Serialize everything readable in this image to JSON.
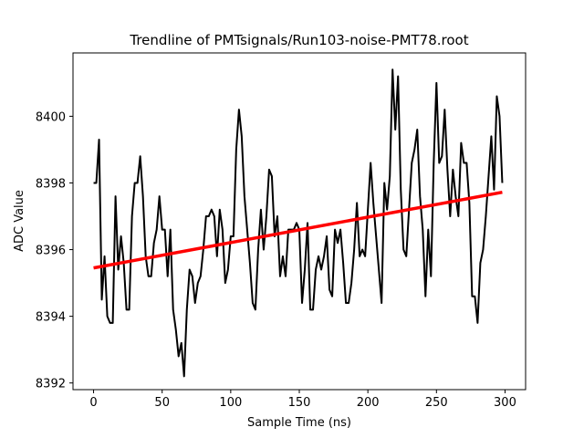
{
  "chart_data": {
    "type": "line",
    "title": "Trendline of PMTsignals/Run103-noise-PMT78.root",
    "xlabel": "Sample Time (ns)",
    "ylabel": "ADC Value",
    "xlim": [
      -15,
      315
    ],
    "ylim": [
      8391.8,
      8401.9
    ],
    "xticks": [
      0,
      50,
      100,
      150,
      200,
      250,
      300
    ],
    "yticks": [
      8392,
      8394,
      8396,
      8398,
      8400
    ],
    "grid": false,
    "series": [
      {
        "color": "#000000",
        "x": [
          0,
          2,
          4,
          6,
          8,
          10,
          12,
          14,
          16,
          18,
          20,
          22,
          24,
          26,
          28,
          30,
          32,
          34,
          36,
          38,
          40,
          42,
          44,
          46,
          48,
          50,
          52,
          54,
          56,
          58,
          60,
          62,
          64,
          66,
          68,
          70,
          72,
          74,
          76,
          78,
          80,
          82,
          84,
          86,
          88,
          90,
          92,
          94,
          96,
          98,
          100,
          102,
          104,
          106,
          108,
          110,
          112,
          114,
          116,
          118,
          120,
          122,
          124,
          126,
          128,
          130,
          132,
          134,
          136,
          138,
          140,
          142,
          144,
          146,
          148,
          150,
          152,
          154,
          156,
          158,
          160,
          162,
          164,
          166,
          168,
          170,
          172,
          174,
          176,
          178,
          180,
          182,
          184,
          186,
          188,
          190,
          192,
          194,
          196,
          198,
          200,
          202,
          204,
          206,
          208,
          210,
          212,
          214,
          216,
          218,
          220,
          222,
          224,
          226,
          228,
          230,
          232,
          234,
          236,
          238,
          240,
          242,
          244,
          246,
          248,
          250,
          252,
          254,
          256,
          258,
          260,
          262,
          264,
          266,
          268,
          270,
          272,
          274,
          276,
          278,
          280,
          282,
          284,
          286,
          288,
          290,
          292,
          294,
          296,
          298
        ],
        "values": [
          8398.0,
          8398.0,
          8399.3,
          8394.5,
          8395.8,
          8394.0,
          8393.8,
          8393.8,
          8397.6,
          8395.4,
          8396.4,
          8395.6,
          8394.2,
          8394.2,
          8397.0,
          8398.0,
          8398.0,
          8398.8,
          8397.6,
          8395.8,
          8395.2,
          8395.2,
          8396.2,
          8396.6,
          8397.6,
          8396.6,
          8396.6,
          8395.2,
          8396.6,
          8394.2,
          8393.6,
          8392.8,
          8393.2,
          8392.2,
          8394.2,
          8395.4,
          8395.2,
          8394.4,
          8395.0,
          8395.2,
          8396.0,
          8397.0,
          8397.0,
          8397.2,
          8397.0,
          8395.8,
          8397.2,
          8396.6,
          8395.0,
          8395.4,
          8396.4,
          8396.4,
          8399.0,
          8400.2,
          8399.4,
          8397.6,
          8396.6,
          8395.6,
          8394.4,
          8394.2,
          8396.0,
          8397.2,
          8396.0,
          8397.0,
          8398.4,
          8398.2,
          8396.4,
          8397.0,
          8395.2,
          8395.8,
          8395.2,
          8396.6,
          8396.6,
          8396.6,
          8396.8,
          8396.6,
          8394.4,
          8395.4,
          8396.8,
          8394.2,
          8394.2,
          8395.4,
          8395.8,
          8395.4,
          8395.8,
          8396.4,
          8394.8,
          8394.6,
          8396.6,
          8396.2,
          8396.6,
          8395.6,
          8394.4,
          8394.4,
          8395.0,
          8396.0,
          8397.4,
          8395.8,
          8396.0,
          8395.8,
          8397.2,
          8398.6,
          8397.4,
          8396.4,
          8395.4,
          8394.4,
          8398.0,
          8397.2,
          8398.2,
          8401.4,
          8399.6,
          8401.2,
          8397.8,
          8396.0,
          8395.8,
          8397.2,
          8398.6,
          8399.0,
          8399.6,
          8397.6,
          8396.6,
          8394.6,
          8396.6,
          8395.2,
          8398.6,
          8401.0,
          8398.6,
          8398.8,
          8400.2,
          8398.4,
          8397.0,
          8398.4,
          8397.6,
          8397.0,
          8399.2,
          8398.6,
          8398.6,
          8397.4,
          8394.6,
          8394.6,
          8393.8,
          8395.6,
          8396.0,
          8397.0,
          8398.2,
          8399.4,
          8397.8,
          8400.6,
          8400.0,
          8398.0
        ]
      },
      {
        "color": "#ff0000",
        "x": [
          0,
          298
        ],
        "values": [
          8395.45,
          8397.72
        ]
      }
    ]
  }
}
